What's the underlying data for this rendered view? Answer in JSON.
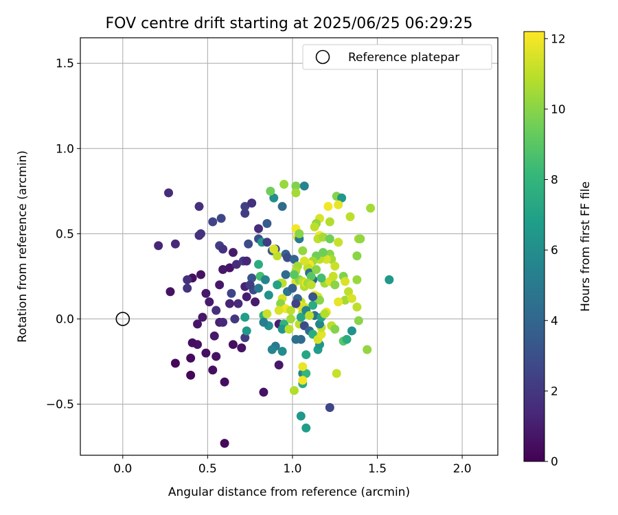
{
  "chart_data": {
    "type": "scatter",
    "title": "FOV centre drift starting at 2025/06/25 06:29:25",
    "xlabel": "Angular distance from reference (arcmin)",
    "ylabel": "Rotation from reference (arcmin)",
    "xlim": [
      -0.25,
      2.21
    ],
    "ylim": [
      -0.8,
      1.65
    ],
    "xticks": [
      0.0,
      0.5,
      1.0,
      1.5,
      2.0
    ],
    "xtick_labels": [
      "0.0",
      "0.5",
      "1.0",
      "1.5",
      "2.0"
    ],
    "yticks": [
      -0.5,
      0.0,
      0.5,
      1.0,
      1.5
    ],
    "ytick_labels": [
      "−0.5",
      "0.0",
      "0.5",
      "1.0",
      "1.5"
    ],
    "grid": true,
    "legend": {
      "position": "top-right",
      "entries": [
        "Reference platepar"
      ]
    },
    "reference_point": {
      "x": 0.0,
      "y": 0.0,
      "label": "Reference platepar",
      "marker": "open-circle"
    },
    "colorbar": {
      "label": "Hours from first FF file",
      "min": 0,
      "max": 12.2,
      "ticks": [
        0,
        2,
        4,
        6,
        8,
        10,
        12
      ],
      "tick_labels": [
        "0",
        "2",
        "4",
        "6",
        "8",
        "10",
        "12"
      ],
      "colormap": "viridis",
      "colors": [
        "#440154",
        "#482878",
        "#3e4989",
        "#31688e",
        "#26828e",
        "#1f9e89",
        "#35b779",
        "#6ece58",
        "#b5de2b",
        "#fde725"
      ]
    },
    "points": [
      {
        "x": 0.6,
        "y": -0.73,
        "h": 0.3
      },
      {
        "x": 0.4,
        "y": -0.33,
        "h": 0.2
      },
      {
        "x": 0.31,
        "y": -0.26,
        "h": 0.2
      },
      {
        "x": 0.4,
        "y": -0.23,
        "h": 0.3
      },
      {
        "x": 0.49,
        "y": -0.2,
        "h": 0.5
      },
      {
        "x": 0.53,
        "y": -0.3,
        "h": 0.5
      },
      {
        "x": 0.6,
        "y": -0.37,
        "h": 0.4
      },
      {
        "x": 0.55,
        "y": -0.22,
        "h": 0.6
      },
      {
        "x": 0.54,
        "y": -0.1,
        "h": 0.8
      },
      {
        "x": 0.44,
        "y": -0.15,
        "h": 0.6
      },
      {
        "x": 0.41,
        "y": -0.14,
        "h": 0.5
      },
      {
        "x": 0.44,
        "y": -0.03,
        "h": 0.7
      },
      {
        "x": 0.47,
        "y": 0.01,
        "h": 0.8
      },
      {
        "x": 0.51,
        "y": 0.1,
        "h": 0.9
      },
      {
        "x": 0.49,
        "y": 0.15,
        "h": 0.8
      },
      {
        "x": 0.57,
        "y": -0.02,
        "h": 1.1
      },
      {
        "x": 0.59,
        "y": -0.02,
        "h": 1.4
      },
      {
        "x": 0.55,
        "y": 0.05,
        "h": 1.6
      },
      {
        "x": 0.65,
        "y": -0.15,
        "h": 0.5
      },
      {
        "x": 0.7,
        "y": -0.17,
        "h": 0.6
      },
      {
        "x": 0.63,
        "y": 0.09,
        "h": 1.2
      },
      {
        "x": 0.64,
        "y": 0.15,
        "h": 2.5
      },
      {
        "x": 0.68,
        "y": 0.09,
        "h": 1.5
      },
      {
        "x": 0.72,
        "y": 0.19,
        "h": 1.2
      },
      {
        "x": 0.73,
        "y": 0.13,
        "h": 1.0
      },
      {
        "x": 0.78,
        "y": 0.1,
        "h": 0.9
      },
      {
        "x": 0.57,
        "y": 0.2,
        "h": 0.8
      },
      {
        "x": 0.46,
        "y": 0.26,
        "h": 0.6
      },
      {
        "x": 0.41,
        "y": 0.24,
        "h": 0.5
      },
      {
        "x": 0.38,
        "y": 0.23,
        "h": 1.7
      },
      {
        "x": 0.38,
        "y": 0.18,
        "h": 1.8
      },
      {
        "x": 0.28,
        "y": 0.16,
        "h": 0.6
      },
      {
        "x": 0.21,
        "y": 0.43,
        "h": 1.3
      },
      {
        "x": 0.31,
        "y": 0.44,
        "h": 1.4
      },
      {
        "x": 0.45,
        "y": 0.49,
        "h": 1.6
      },
      {
        "x": 0.46,
        "y": 0.5,
        "h": 1.8
      },
      {
        "x": 0.45,
        "y": 0.66,
        "h": 1.7
      },
      {
        "x": 0.27,
        "y": 0.74,
        "h": 1.5
      },
      {
        "x": 0.53,
        "y": 0.57,
        "h": 2.5
      },
      {
        "x": 0.58,
        "y": 0.59,
        "h": 2.6
      },
      {
        "x": 0.57,
        "y": 0.43,
        "h": 2.3
      },
      {
        "x": 0.59,
        "y": 0.41,
        "h": 1.8
      },
      {
        "x": 0.59,
        "y": 0.29,
        "h": 0.8
      },
      {
        "x": 0.63,
        "y": 0.3,
        "h": 0.7
      },
      {
        "x": 0.65,
        "y": 0.39,
        "h": 0.9
      },
      {
        "x": 0.67,
        "y": 0.32,
        "h": 1.6
      },
      {
        "x": 0.71,
        "y": 0.34,
        "h": 2.0
      },
      {
        "x": 0.74,
        "y": 0.44,
        "h": 2.8
      },
      {
        "x": 0.73,
        "y": 0.34,
        "h": 1.3
      },
      {
        "x": 0.76,
        "y": 0.24,
        "h": 3.2
      },
      {
        "x": 0.77,
        "y": 0.17,
        "h": 2.7
      },
      {
        "x": 0.75,
        "y": 0.2,
        "h": 2.2
      },
      {
        "x": 0.72,
        "y": 0.62,
        "h": 2.2
      },
      {
        "x": 0.72,
        "y": 0.66,
        "h": 2.4
      },
      {
        "x": 0.76,
        "y": 0.68,
        "h": 2.7
      },
      {
        "x": 0.76,
        "y": 0.68,
        "h": 1.7
      },
      {
        "x": 0.8,
        "y": 0.53,
        "h": 1.5
      },
      {
        "x": 0.8,
        "y": 0.47,
        "h": 3.0
      },
      {
        "x": 0.82,
        "y": 0.45,
        "h": 6.5
      },
      {
        "x": 0.85,
        "y": 0.45,
        "h": 2.2
      },
      {
        "x": 0.85,
        "y": 0.56,
        "h": 3.5
      },
      {
        "x": 0.89,
        "y": 0.71,
        "h": 6.0
      },
      {
        "x": 0.87,
        "y": 0.75,
        "h": 9.5
      },
      {
        "x": 0.94,
        "y": 0.66,
        "h": 4.2
      },
      {
        "x": 0.95,
        "y": 0.79,
        "h": 10.3
      },
      {
        "x": 1.02,
        "y": 0.78,
        "h": 9.8
      },
      {
        "x": 1.07,
        "y": 0.78,
        "h": 5.5
      },
      {
        "x": 1.02,
        "y": 0.74,
        "h": 10.5
      },
      {
        "x": 0.8,
        "y": 0.32,
        "h": 7.5
      },
      {
        "x": 0.8,
        "y": 0.18,
        "h": 5.0
      },
      {
        "x": 0.81,
        "y": 0.25,
        "h": 8.5
      },
      {
        "x": 0.84,
        "y": 0.23,
        "h": 5.5
      },
      {
        "x": 0.86,
        "y": 0.14,
        "h": 6.2
      },
      {
        "x": 0.88,
        "y": 0.4,
        "h": 3.4
      },
      {
        "x": 0.9,
        "y": 0.41,
        "h": 3.0
      },
      {
        "x": 0.91,
        "y": 0.37,
        "h": 11.0
      },
      {
        "x": 0.89,
        "y": 0.41,
        "h": 11.5
      },
      {
        "x": 0.96,
        "y": 0.38,
        "h": 3.9
      },
      {
        "x": 0.97,
        "y": 0.36,
        "h": 2.8
      },
      {
        "x": 0.96,
        "y": 0.26,
        "h": 4.3
      },
      {
        "x": 0.93,
        "y": 0.21,
        "h": 10.5
      },
      {
        "x": 0.94,
        "y": 0.21,
        "h": 11.0
      },
      {
        "x": 0.91,
        "y": 0.2,
        "h": 7.0
      },
      {
        "x": 0.97,
        "y": 0.16,
        "h": 4.8
      },
      {
        "x": 0.94,
        "y": 0.12,
        "h": 11.5
      },
      {
        "x": 0.93,
        "y": 0.09,
        "h": 10.0
      },
      {
        "x": 0.96,
        "y": 0.06,
        "h": 12.0
      },
      {
        "x": 0.92,
        "y": 0.05,
        "h": 11.5
      },
      {
        "x": 0.99,
        "y": 0.05,
        "h": 11.0
      },
      {
        "x": 0.83,
        "y": 0.02,
        "h": 7.8
      },
      {
        "x": 0.86,
        "y": -0.04,
        "h": 6.0
      },
      {
        "x": 0.83,
        "y": -0.02,
        "h": 5.2
      },
      {
        "x": 0.85,
        "y": 0.03,
        "h": 11.2
      },
      {
        "x": 0.92,
        "y": -0.03,
        "h": 1.0
      },
      {
        "x": 0.95,
        "y": -0.03,
        "h": 7.8
      },
      {
        "x": 0.94,
        "y": -0.06,
        "h": 6.5
      },
      {
        "x": 0.98,
        "y": -0.06,
        "h": 11.0
      },
      {
        "x": 0.99,
        "y": -0.0,
        "h": 10.5
      },
      {
        "x": 1.04,
        "y": -0.03,
        "h": 11.0
      },
      {
        "x": 0.9,
        "y": -0.16,
        "h": 5.0
      },
      {
        "x": 0.88,
        "y": -0.18,
        "h": 5.5
      },
      {
        "x": 0.94,
        "y": -0.19,
        "h": 5.9
      },
      {
        "x": 0.92,
        "y": -0.27,
        "h": 0.8
      },
      {
        "x": 0.83,
        "y": -0.43,
        "h": 0.6
      },
      {
        "x": 0.72,
        "y": -0.11,
        "h": 2.2
      },
      {
        "x": 0.73,
        "y": -0.07,
        "h": 6.5
      },
      {
        "x": 0.72,
        "y": 0.01,
        "h": 6.8
      },
      {
        "x": 0.66,
        "y": -0.0,
        "h": 2.0
      },
      {
        "x": 1.01,
        "y": -0.42,
        "h": 10.8
      },
      {
        "x": 1.06,
        "y": -0.32,
        "h": 5.5
      },
      {
        "x": 1.08,
        "y": -0.32,
        "h": 8.0
      },
      {
        "x": 1.06,
        "y": -0.38,
        "h": 7.5
      },
      {
        "x": 1.06,
        "y": -0.28,
        "h": 11.8
      },
      {
        "x": 1.06,
        "y": -0.36,
        "h": 12.0
      },
      {
        "x": 1.05,
        "y": -0.57,
        "h": 6.5
      },
      {
        "x": 1.08,
        "y": -0.64,
        "h": 6.8
      },
      {
        "x": 1.22,
        "y": -0.52,
        "h": 2.6
      },
      {
        "x": 1.05,
        "y": -0.12,
        "h": 4.2
      },
      {
        "x": 1.08,
        "y": -0.21,
        "h": 7.2
      },
      {
        "x": 1.02,
        "y": -0.12,
        "h": 4.5
      },
      {
        "x": 1.07,
        "y": -0.04,
        "h": 2.8
      },
      {
        "x": 1.1,
        "y": -0.07,
        "h": 4.1
      },
      {
        "x": 1.12,
        "y": -0.09,
        "h": 7.6
      },
      {
        "x": 1.15,
        "y": -0.18,
        "h": 6.8
      },
      {
        "x": 1.16,
        "y": -0.15,
        "h": 6.3
      },
      {
        "x": 1.15,
        "y": -0.12,
        "h": 11.5
      },
      {
        "x": 1.17,
        "y": -0.09,
        "h": 11.7
      },
      {
        "x": 1.17,
        "y": -0.05,
        "h": 11.0
      },
      {
        "x": 1.16,
        "y": -0.03,
        "h": 5.5
      },
      {
        "x": 1.13,
        "y": 0.02,
        "h": 4.5
      },
      {
        "x": 1.17,
        "y": 0.01,
        "h": 7.0
      },
      {
        "x": 1.23,
        "y": -0.04,
        "h": 11.0
      },
      {
        "x": 1.25,
        "y": -0.06,
        "h": 9.9
      },
      {
        "x": 1.26,
        "y": -0.32,
        "h": 11.2
      },
      {
        "x": 1.3,
        "y": -0.13,
        "h": 9.0
      },
      {
        "x": 1.32,
        "y": -0.12,
        "h": 7.5
      },
      {
        "x": 1.35,
        "y": -0.07,
        "h": 6.2
      },
      {
        "x": 1.39,
        "y": -0.01,
        "h": 10.0
      },
      {
        "x": 1.44,
        "y": -0.18,
        "h": 10.2
      },
      {
        "x": 1.38,
        "y": 0.07,
        "h": 11.0
      },
      {
        "x": 1.31,
        "y": 0.11,
        "h": 10.5
      },
      {
        "x": 1.27,
        "y": 0.1,
        "h": 11.8
      },
      {
        "x": 1.33,
        "y": 0.16,
        "h": 11.0
      },
      {
        "x": 1.35,
        "y": 0.12,
        "h": 11.5
      },
      {
        "x": 1.3,
        "y": 0.25,
        "h": 9.8
      },
      {
        "x": 1.31,
        "y": 0.22,
        "h": 11.5
      },
      {
        "x": 1.38,
        "y": 0.23,
        "h": 10.3
      },
      {
        "x": 1.57,
        "y": 0.23,
        "h": 6.5
      },
      {
        "x": 1.38,
        "y": 0.37,
        "h": 10.0
      },
      {
        "x": 1.39,
        "y": 0.47,
        "h": 10.5
      },
      {
        "x": 1.4,
        "y": 0.47,
        "h": 10.2
      },
      {
        "x": 1.46,
        "y": 0.65,
        "h": 10.5
      },
      {
        "x": 1.34,
        "y": 0.6,
        "h": 11.0
      },
      {
        "x": 1.26,
        "y": 0.72,
        "h": 9.9
      },
      {
        "x": 1.29,
        "y": 0.71,
        "h": 6.5
      },
      {
        "x": 1.27,
        "y": 0.67,
        "h": 11.8
      },
      {
        "x": 1.21,
        "y": 0.66,
        "h": 12.0
      },
      {
        "x": 1.22,
        "y": 0.57,
        "h": 10.8
      },
      {
        "x": 1.16,
        "y": 0.59,
        "h": 11.5
      },
      {
        "x": 1.14,
        "y": 0.56,
        "h": 10.2
      },
      {
        "x": 1.13,
        "y": 0.54,
        "h": 11.0
      },
      {
        "x": 1.16,
        "y": 0.49,
        "h": 12.0
      },
      {
        "x": 1.15,
        "y": 0.47,
        "h": 11.0
      },
      {
        "x": 1.18,
        "y": 0.48,
        "h": 10.5
      },
      {
        "x": 1.22,
        "y": 0.47,
        "h": 9.5
      },
      {
        "x": 1.27,
        "y": 0.45,
        "h": 11.2
      },
      {
        "x": 1.22,
        "y": 0.38,
        "h": 10.0
      },
      {
        "x": 1.23,
        "y": 0.35,
        "h": 10.5
      },
      {
        "x": 1.25,
        "y": 0.31,
        "h": 11.2
      },
      {
        "x": 1.2,
        "y": 0.35,
        "h": 11.5
      },
      {
        "x": 1.16,
        "y": 0.35,
        "h": 11.0
      },
      {
        "x": 1.14,
        "y": 0.37,
        "h": 9.5
      },
      {
        "x": 1.12,
        "y": 0.34,
        "h": 10.5
      },
      {
        "x": 1.1,
        "y": 0.32,
        "h": 12.0
      },
      {
        "x": 1.09,
        "y": 0.3,
        "h": 11.0
      },
      {
        "x": 1.07,
        "y": 0.34,
        "h": 11.5
      },
      {
        "x": 1.06,
        "y": 0.4,
        "h": 10.2
      },
      {
        "x": 1.03,
        "y": 0.48,
        "h": 11.8
      },
      {
        "x": 1.04,
        "y": 0.47,
        "h": 5.0
      },
      {
        "x": 1.02,
        "y": 0.53,
        "h": 12.0
      },
      {
        "x": 1.04,
        "y": 0.5,
        "h": 10.0
      },
      {
        "x": 1.01,
        "y": 0.35,
        "h": 4.0
      },
      {
        "x": 1.03,
        "y": 0.31,
        "h": 10.5
      },
      {
        "x": 1.02,
        "y": 0.28,
        "h": 10.8
      },
      {
        "x": 1.02,
        "y": 0.22,
        "h": 11.5
      },
      {
        "x": 1.04,
        "y": 0.23,
        "h": 10.0
      },
      {
        "x": 1.06,
        "y": 0.22,
        "h": 11.0
      },
      {
        "x": 1.07,
        "y": 0.19,
        "h": 10.8
      },
      {
        "x": 1.08,
        "y": 0.21,
        "h": 11.8
      },
      {
        "x": 1.1,
        "y": 0.27,
        "h": 4.5
      },
      {
        "x": 1.12,
        "y": 0.23,
        "h": 4.0
      },
      {
        "x": 1.11,
        "y": 0.25,
        "h": 9.0
      },
      {
        "x": 1.09,
        "y": 0.21,
        "h": 10.5
      },
      {
        "x": 1.11,
        "y": 0.2,
        "h": 11.0
      },
      {
        "x": 1.13,
        "y": 0.14,
        "h": 12.0
      },
      {
        "x": 1.15,
        "y": 0.13,
        "h": 11.5
      },
      {
        "x": 1.16,
        "y": 0.11,
        "h": 10.0
      },
      {
        "x": 1.12,
        "y": 0.08,
        "h": 7.5
      },
      {
        "x": 1.05,
        "y": 0.1,
        "h": 11.0
      },
      {
        "x": 1.03,
        "y": 0.12,
        "h": 4.0
      },
      {
        "x": 1.04,
        "y": 0.08,
        "h": 12.0
      },
      {
        "x": 1.07,
        "y": 0.07,
        "h": 11.5
      },
      {
        "x": 1.06,
        "y": 0.04,
        "h": 11.2
      },
      {
        "x": 1.05,
        "y": 0.01,
        "h": 7.2
      },
      {
        "x": 1.08,
        "y": 0.05,
        "h": 5.5
      },
      {
        "x": 1.1,
        "y": 0.02,
        "h": 11.0
      },
      {
        "x": 1.02,
        "y": 0.09,
        "h": 2.5
      },
      {
        "x": 1.0,
        "y": 0.18,
        "h": 3.8
      },
      {
        "x": 1.01,
        "y": 0.26,
        "h": 9.0
      },
      {
        "x": 1.12,
        "y": 0.13,
        "h": 3.3
      },
      {
        "x": 1.19,
        "y": 0.21,
        "h": 10.5
      },
      {
        "x": 1.22,
        "y": 0.22,
        "h": 11.5
      },
      {
        "x": 1.24,
        "y": 0.25,
        "h": 11.2
      },
      {
        "x": 1.25,
        "y": 0.2,
        "h": 10.0
      },
      {
        "x": 1.2,
        "y": 0.04,
        "h": 11.8
      },
      {
        "x": 1.19,
        "y": 0.03,
        "h": 10.8
      },
      {
        "x": 1.18,
        "y": 0.39,
        "h": 9.5
      },
      {
        "x": 1.14,
        "y": 0.29,
        "h": 10.0
      },
      {
        "x": 1.17,
        "y": 0.24,
        "h": 8.5
      }
    ]
  }
}
